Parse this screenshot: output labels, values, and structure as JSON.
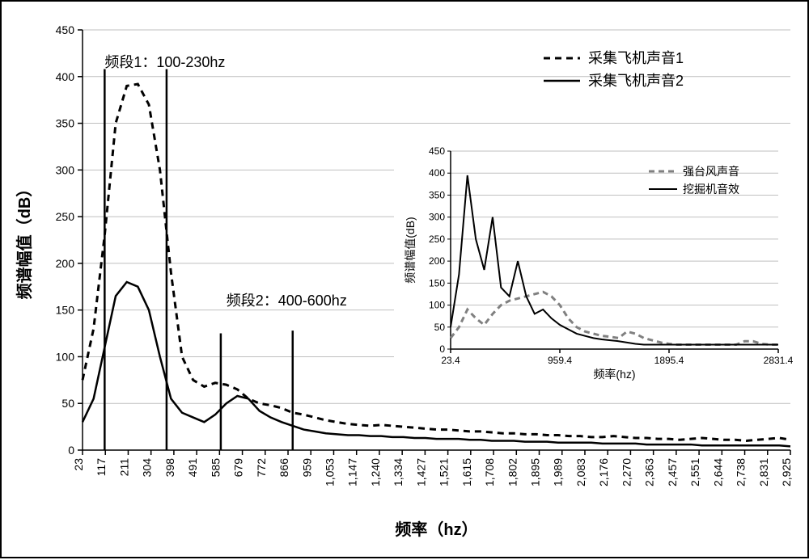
{
  "main_chart": {
    "type": "line",
    "xlabel": "频率（hz）",
    "ylabel": "频谱幅值（dB）",
    "label_fontsize": 20,
    "tick_fontsize": 14,
    "background_color": "#ffffff",
    "grid_color": "#bfbfbf",
    "axis_color": "#000000",
    "ylim": [
      0,
      450
    ],
    "ytick_step": 50,
    "xticks": [
      "23",
      "117",
      "211",
      "304",
      "398",
      "491",
      "585",
      "679",
      "772",
      "866",
      "959",
      "1,053",
      "1,147",
      "1,240",
      "1,334",
      "1,427",
      "1,521",
      "1,615",
      "1,708",
      "1,802",
      "1,895",
      "1,989",
      "2,083",
      "2,176",
      "2,270",
      "2,363",
      "2,457",
      "2,551",
      "2,644",
      "2,738",
      "2,831",
      "2,925"
    ],
    "legend": {
      "items": [
        {
          "label": "采集飞机声音1",
          "color": "#000000",
          "dash": "8,6",
          "width": 3
        },
        {
          "label": "采集飞机声音2",
          "color": "#000000",
          "dash": "none",
          "width": 2.5
        }
      ],
      "fontsize": 18
    },
    "series1": {
      "name": "采集飞机声音1",
      "color": "#000000",
      "dash": "8,6",
      "width": 3,
      "y": [
        75,
        130,
        230,
        350,
        390,
        392,
        370,
        300,
        190,
        100,
        75,
        68,
        72,
        70,
        65,
        55,
        50,
        48,
        45,
        40,
        38,
        35,
        32,
        30,
        28,
        27,
        26,
        27,
        26,
        25,
        24,
        23,
        22,
        22,
        21,
        20,
        20,
        19,
        18,
        18,
        17,
        17,
        16,
        16,
        15,
        15,
        14,
        14,
        15,
        14,
        13,
        13,
        12,
        12,
        11,
        12,
        13,
        12,
        11,
        11,
        10,
        11,
        12,
        13,
        11
      ]
    },
    "series2": {
      "name": "采集飞机声音2",
      "color": "#000000",
      "dash": "none",
      "width": 2.5,
      "y": [
        30,
        55,
        110,
        165,
        180,
        175,
        150,
        100,
        55,
        40,
        35,
        30,
        38,
        50,
        58,
        55,
        42,
        35,
        30,
        26,
        22,
        20,
        18,
        17,
        16,
        16,
        15,
        15,
        14,
        14,
        13,
        13,
        12,
        12,
        12,
        11,
        11,
        10,
        10,
        10,
        9,
        9,
        9,
        8,
        8,
        8,
        8,
        7,
        7,
        7,
        7,
        6,
        6,
        6,
        6,
        6,
        5,
        5,
        5,
        5,
        5,
        5,
        5,
        5,
        4
      ]
    },
    "annotations": [
      {
        "text": "频段1：100-230hz",
        "x_index": 2,
        "y": 410,
        "fontsize": 18,
        "lines": [
          {
            "x_index": 2,
            "y1": 0,
            "y2": 408
          },
          {
            "x_index": 7.6,
            "y1": 0,
            "y2": 408
          }
        ]
      },
      {
        "text": "频段2：400-600hz",
        "x_index": 13,
        "y": 155,
        "fontsize": 18,
        "lines": [
          {
            "x_index": 12.5,
            "y1": 0,
            "y2": 125
          },
          {
            "x_index": 19,
            "y1": 0,
            "y2": 128
          }
        ]
      }
    ]
  },
  "inset_chart": {
    "type": "line",
    "xlabel": "频率(hz)",
    "ylabel": "频谱幅值(dB)",
    "label_fontsize": 14,
    "tick_fontsize": 12,
    "background_color": "#ffffff",
    "grid_color": "#bfbfbf",
    "axis_color": "#000000",
    "ylim": [
      0,
      450
    ],
    "ytick_step": 50,
    "xticks": [
      "23.4",
      "959.4",
      "1895.4",
      "2831.4"
    ],
    "legend": {
      "items": [
        {
          "label": "强台风声音",
          "color": "#808080",
          "dash": "7,5",
          "width": 3
        },
        {
          "label": "挖掘机音效",
          "color": "#000000",
          "dash": "none",
          "width": 2
        }
      ],
      "fontsize": 14
    },
    "series1": {
      "name": "强台风声音",
      "color": "#808080",
      "dash": "7,5",
      "width": 3,
      "y": [
        25,
        50,
        90,
        70,
        55,
        80,
        100,
        110,
        115,
        120,
        125,
        130,
        120,
        100,
        70,
        50,
        40,
        35,
        30,
        28,
        25,
        40,
        35,
        25,
        20,
        15,
        12,
        10,
        10,
        10,
        10,
        10,
        10,
        10,
        10,
        18,
        18,
        12,
        10,
        10
      ]
    },
    "series2": {
      "name": "挖掘机音效",
      "color": "#000000",
      "dash": "none",
      "width": 2,
      "y": [
        50,
        170,
        395,
        250,
        180,
        300,
        140,
        120,
        200,
        120,
        80,
        90,
        70,
        55,
        45,
        35,
        30,
        25,
        22,
        20,
        18,
        15,
        12,
        10,
        10,
        10,
        10,
        10,
        10,
        10,
        10,
        10,
        10,
        10,
        10,
        10,
        10,
        10,
        10,
        10
      ]
    }
  }
}
